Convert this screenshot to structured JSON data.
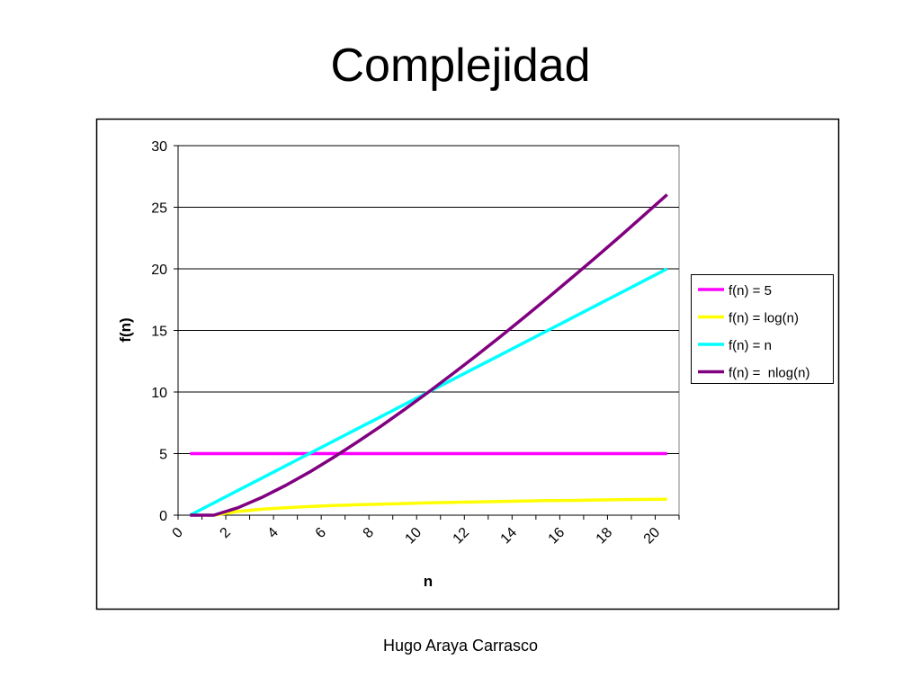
{
  "title": "Complejidad",
  "footer": "Hugo Araya Carrasco",
  "chart_data": {
    "type": "line",
    "x_label": "n",
    "y_label": "f(n)",
    "categories": [
      "0",
      null,
      "2",
      null,
      "4",
      null,
      "6",
      null,
      "8",
      null,
      "10",
      null,
      "12",
      null,
      "14",
      null,
      "16",
      null,
      "18",
      null,
      "20"
    ],
    "ylim": [
      0,
      30
    ],
    "yticks": [
      0,
      5,
      10,
      15,
      20,
      25,
      30
    ],
    "grid": true,
    "legend": "right",
    "series": [
      {
        "name": "f(n) = 5",
        "color": "#ff00ff",
        "values": [
          5,
          5,
          5,
          5,
          5,
          5,
          5,
          5,
          5,
          5,
          5,
          5,
          5,
          5,
          5,
          5,
          5,
          5,
          5,
          5,
          5
        ]
      },
      {
        "name": "f(n) = log(n)",
        "color": "#ffff00",
        "values": [
          null,
          0,
          0.3,
          0.48,
          0.6,
          0.7,
          0.78,
          0.85,
          0.9,
          0.95,
          1,
          1.04,
          1.08,
          1.11,
          1.15,
          1.18,
          1.2,
          1.23,
          1.26,
          1.28,
          1.3
        ]
      },
      {
        "name": "f(n) = n",
        "color": "#00ffff",
        "values": [
          0,
          1,
          2,
          3,
          4,
          5,
          6,
          7,
          8,
          9,
          10,
          11,
          12,
          13,
          14,
          15,
          16,
          17,
          18,
          19,
          20
        ]
      },
      {
        "name": "f(n) =  nlog(n)",
        "color": "#800080",
        "values": [
          0,
          0,
          0.6,
          1.43,
          2.41,
          3.49,
          4.67,
          5.92,
          7.22,
          8.59,
          10,
          11.46,
          12.95,
          14.48,
          16.05,
          17.64,
          19.27,
          20.92,
          22.59,
          24.3,
          26.02
        ]
      }
    ]
  }
}
